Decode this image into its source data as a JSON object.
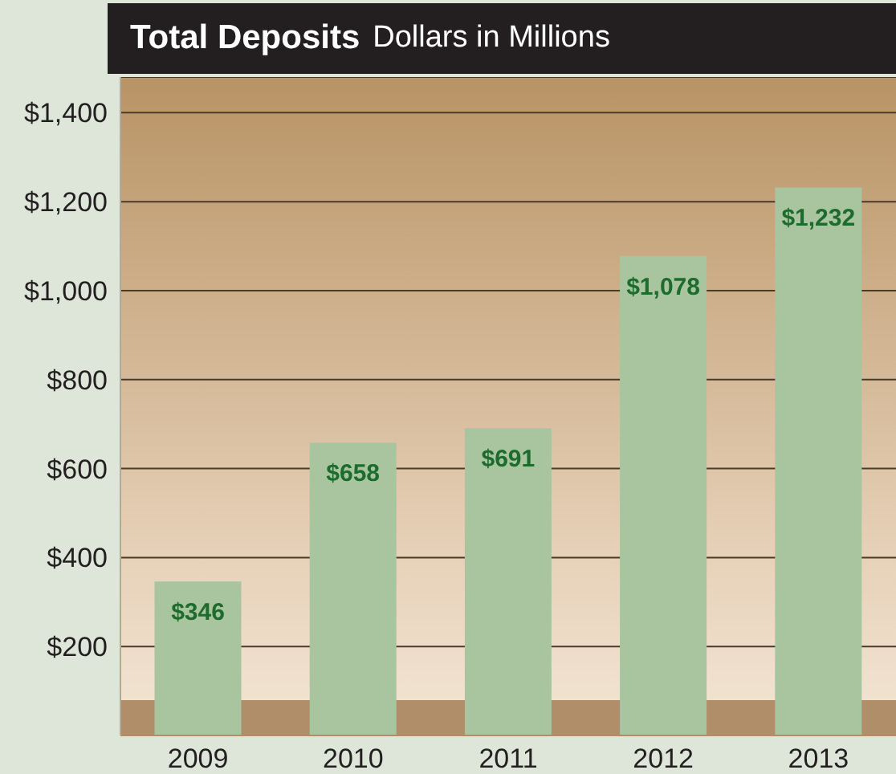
{
  "chart_data": {
    "type": "bar",
    "title": "Total Deposits",
    "subtitle": "Dollars in Millions",
    "categories": [
      "2009",
      "2010",
      "2011",
      "2012",
      "2013"
    ],
    "series": [
      {
        "color": "#a8c5a0",
        "values": [
          346,
          658,
          691,
          1078,
          1232
        ],
        "value_labels": [
          "$346",
          "$658",
          "$691",
          "$1,078",
          "$1,232"
        ]
      }
    ],
    "ylim": [
      0,
      1480
    ],
    "yticks": [
      {
        "value": 200,
        "label": "$200"
      },
      {
        "value": 400,
        "label": "$400"
      },
      {
        "value": 600,
        "label": "$600"
      },
      {
        "value": 800,
        "label": "$800"
      },
      {
        "value": 1000,
        "label": "$1,000"
      },
      {
        "value": 1200,
        "label": "$1,200"
      },
      {
        "value": 1400,
        "label": "$1,400"
      }
    ],
    "grid": "y"
  }
}
